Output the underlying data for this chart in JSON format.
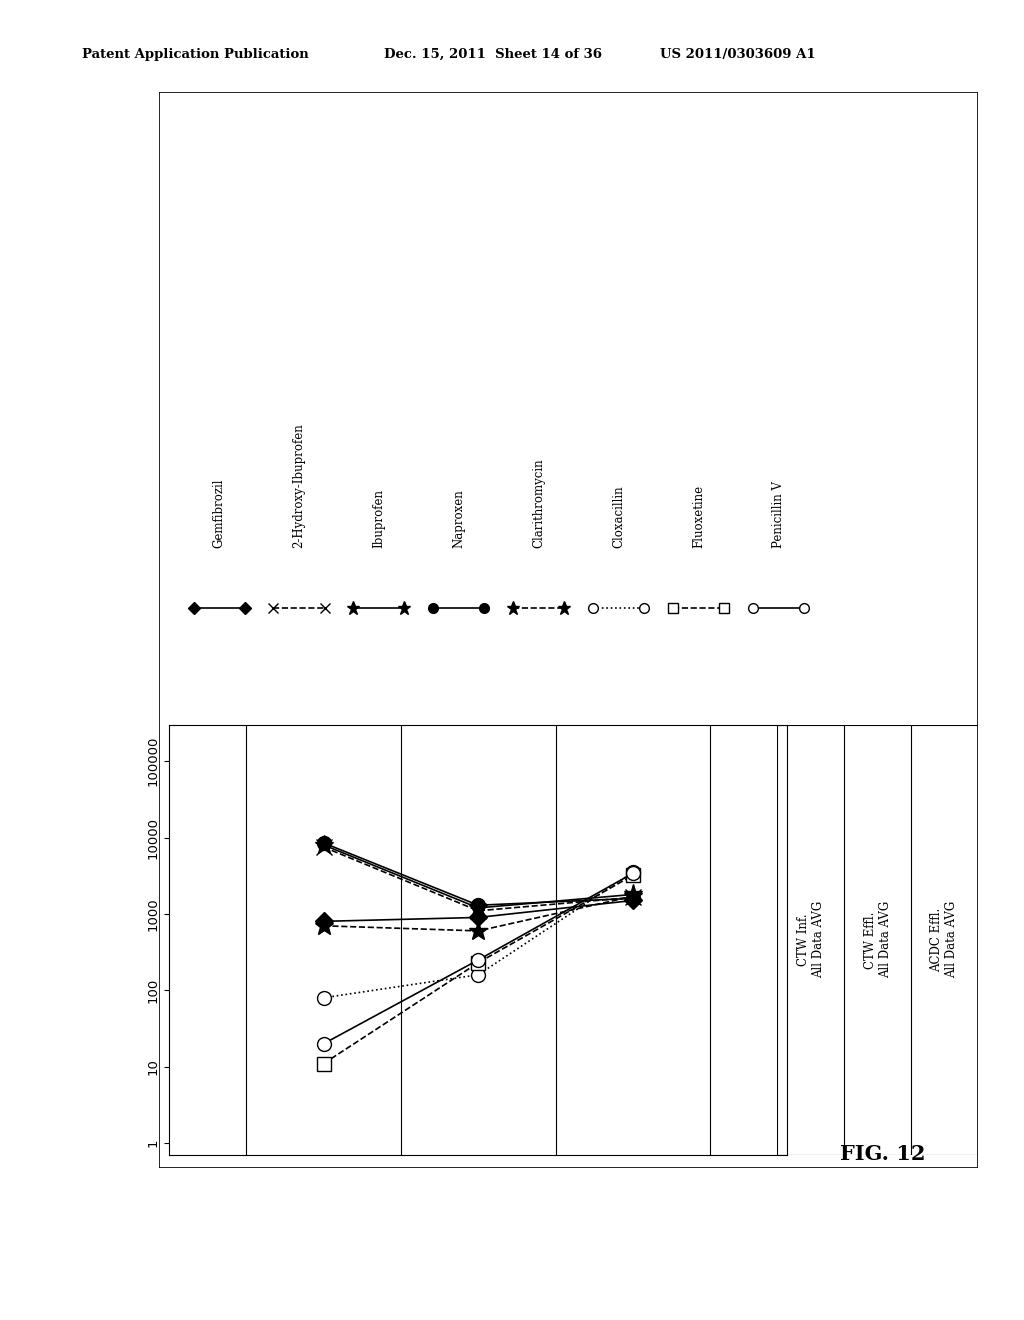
{
  "header_left": "Patent Application Publication",
  "header_center": "Dec. 15, 2011  Sheet 14 of 36",
  "header_right": "US 2011/0303609 A1",
  "fig_label": "FIG. 12",
  "col_labels": [
    [
      "CTW Inf.",
      "All Data AVG"
    ],
    [
      "CTW Effl.",
      "All Data AVG"
    ],
    [
      "ACDC Effl.",
      "All Data AVG"
    ]
  ],
  "ylim_log": [
    0.7,
    300000
  ],
  "yticks": [
    1,
    10,
    100,
    1000,
    10000,
    100000
  ],
  "ytick_labels": [
    "1",
    "10",
    "100",
    "1000",
    "10000",
    "100000"
  ],
  "series": [
    {
      "name": "Gemfibrozil",
      "marker": "D",
      "linestyle": "-",
      "markersize": 9,
      "fillstyle": "full",
      "values": [
        800,
        900,
        1500
      ]
    },
    {
      "name": "2-Hydroxy-Ibuprofen",
      "marker": "x",
      "linestyle": "--",
      "markersize": 11,
      "fillstyle": "full",
      "values": [
        7500,
        1100,
        1650
      ]
    },
    {
      "name": "Ibuprofen",
      "marker": "*",
      "linestyle": "-",
      "markersize": 14,
      "fillstyle": "full",
      "values": [
        8000,
        1200,
        1800
      ]
    },
    {
      "name": "Naproxen",
      "marker": "o",
      "linestyle": "-",
      "markersize": 10,
      "fillstyle": "full",
      "values": [
        8500,
        1300,
        1600
      ]
    },
    {
      "name": "Clarithromycin",
      "marker": "*",
      "linestyle": "--",
      "markersize": 14,
      "fillstyle": "full",
      "values": [
        700,
        600,
        1700
      ]
    },
    {
      "name": "Cloxacillin",
      "marker": "o",
      "linestyle": ":",
      "markersize": 10,
      "fillstyle": "none",
      "values": [
        80,
        160,
        3500
      ]
    },
    {
      "name": "Fluoxetine",
      "marker": "s",
      "linestyle": "--",
      "markersize": 10,
      "fillstyle": "none",
      "values": [
        11,
        230,
        3200
      ]
    },
    {
      "name": "Penicillin V",
      "marker": "o",
      "linestyle": "-",
      "markersize": 10,
      "fillstyle": "none",
      "values": [
        20,
        250,
        3400
      ]
    }
  ]
}
